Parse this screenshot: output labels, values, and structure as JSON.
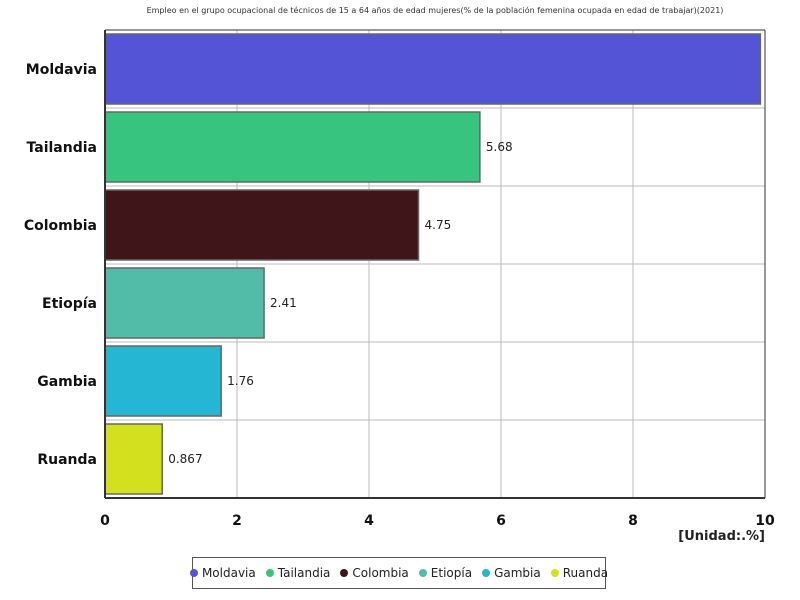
{
  "chart_data": {
    "type": "bar",
    "orientation": "horizontal",
    "title": "Empleo en el grupo ocupacional de técnicos de 15 a 64 años de edad mujeres(% de la población femenina ocupada en edad de trabajar)(2021)",
    "unit_label": "[Unidad:.%]",
    "categories": [
      "Moldavia",
      "Tailandia",
      "Colombia",
      "Etiopía",
      "Gambia",
      "Ruanda"
    ],
    "values": [
      9.93,
      5.68,
      4.75,
      2.41,
      1.76,
      0.867
    ],
    "data_labels": [
      "",
      "5.68",
      "4.75",
      "2.41",
      "1.76",
      "0.867"
    ],
    "colors": [
      "#5454d6",
      "#37c47e",
      "#3f1519",
      "#52bca8",
      "#24b6d2",
      "#d3e01e"
    ],
    "xlim": [
      0,
      10
    ],
    "x_ticks": [
      "0",
      "2",
      "4",
      "6",
      "8",
      "10"
    ],
    "grid": true,
    "legend": {
      "position": "bottom",
      "items": [
        "Moldavia",
        "Tailandia",
        "Colombia",
        "Etiopía",
        "Gambia",
        "Ruanda"
      ]
    }
  }
}
